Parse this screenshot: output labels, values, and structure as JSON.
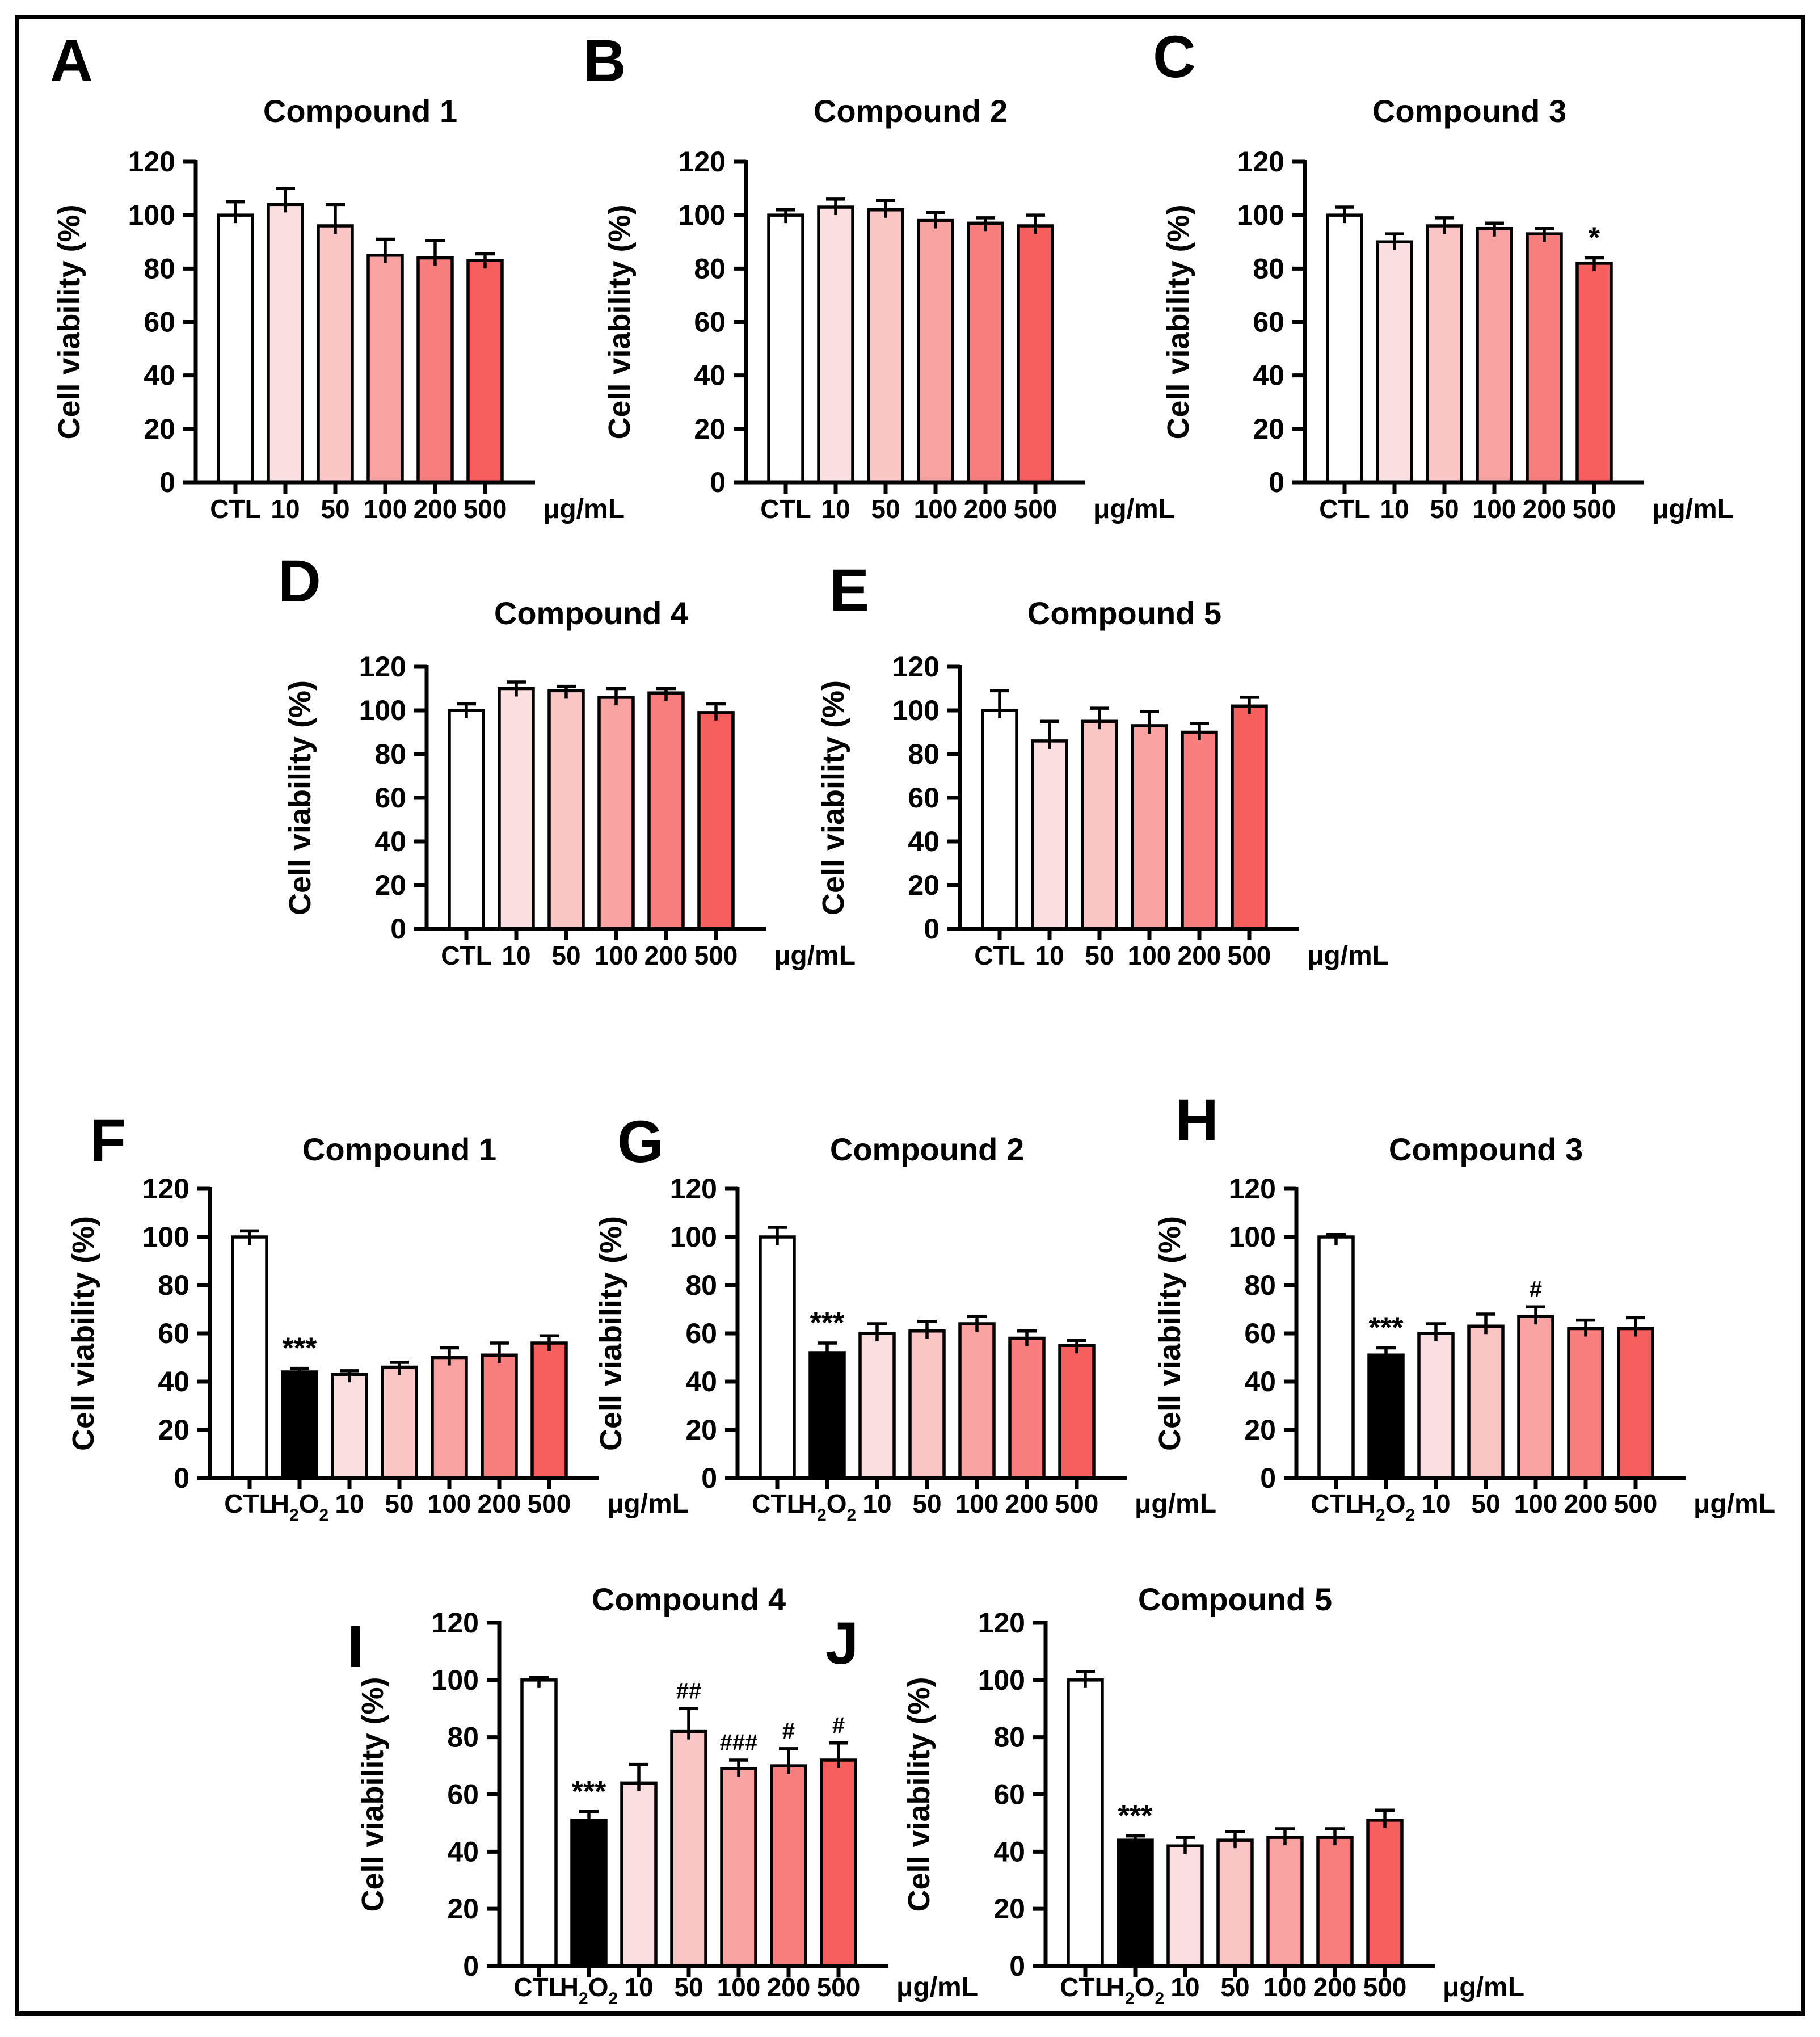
{
  "figure": {
    "y_axis_label": "Cell viability (%)",
    "x_unit": "μg/mL",
    "y_ticks": [
      0,
      20,
      40,
      60,
      80,
      100,
      120
    ],
    "ylim": [
      0,
      120
    ],
    "panel_letters": [
      "A",
      "B",
      "C",
      "D",
      "E",
      "F",
      "G",
      "H",
      "I",
      "J"
    ],
    "colors": {
      "background": "#FFFFFF",
      "frame": "#000000",
      "bar_stroke": "#000000",
      "error_bar": "#000000",
      "control_fill": "#FFFFFF",
      "h2o2_fill": "#000000",
      "dose_fills": [
        "#FBDEE0",
        "#F9C5C5",
        "#F8A2A2",
        "#F87F7E",
        "#F75E5E"
      ]
    }
  },
  "chart_data": [
    {
      "panel": "A",
      "type": "bar",
      "title": "Compound 1",
      "ylabel": "Cell viability (%)",
      "x_unit": "μg/mL",
      "ylim": [
        0,
        120
      ],
      "categories": [
        "CTL",
        "10",
        "50",
        "100",
        "200",
        "500"
      ],
      "values": [
        100,
        104,
        96,
        85,
        84,
        83
      ],
      "errors": [
        5,
        6,
        8,
        6,
        6.5,
        2.5
      ],
      "sig": [
        "",
        "",
        "",
        "",
        "",
        ""
      ]
    },
    {
      "panel": "B",
      "type": "bar",
      "title": "Compound 2",
      "ylabel": "Cell viability (%)",
      "x_unit": "μg/mL",
      "ylim": [
        0,
        120
      ],
      "categories": [
        "CTL",
        "10",
        "50",
        "100",
        "200",
        "500"
      ],
      "values": [
        100,
        103,
        102,
        98,
        97,
        96
      ],
      "errors": [
        2,
        3,
        3.5,
        3,
        2,
        4
      ],
      "sig": [
        "",
        "",
        "",
        "",
        "",
        ""
      ]
    },
    {
      "panel": "C",
      "type": "bar",
      "title": "Compound 3",
      "ylabel": "Cell viability (%)",
      "x_unit": "μg/mL",
      "ylim": [
        0,
        120
      ],
      "categories": [
        "CTL",
        "10",
        "50",
        "100",
        "200",
        "500"
      ],
      "values": [
        100,
        90,
        96,
        95,
        93,
        82
      ],
      "errors": [
        3,
        3,
        3,
        2,
        2,
        2
      ],
      "sig": [
        "",
        "",
        "",
        "",
        "",
        "*"
      ]
    },
    {
      "panel": "D",
      "type": "bar",
      "title": "Compound 4",
      "ylabel": "Cell viability (%)",
      "x_unit": "μg/mL",
      "ylim": [
        0,
        120
      ],
      "categories": [
        "CTL",
        "10",
        "50",
        "100",
        "200",
        "500"
      ],
      "values": [
        100,
        110,
        109,
        106,
        108,
        99
      ],
      "errors": [
        3,
        3,
        2,
        4,
        2,
        4
      ],
      "sig": [
        "",
        "",
        "",
        "",
        "",
        ""
      ]
    },
    {
      "panel": "E",
      "type": "bar",
      "title": "Compound 5",
      "ylabel": "Cell viability (%)",
      "x_unit": "μg/mL",
      "ylim": [
        0,
        120
      ],
      "categories": [
        "CTL",
        "10",
        "50",
        "100",
        "200",
        "500"
      ],
      "values": [
        100,
        86,
        95,
        93,
        90,
        102
      ],
      "errors": [
        9,
        9,
        6,
        6.5,
        4,
        4
      ],
      "sig": [
        "",
        "",
        "",
        "",
        "",
        ""
      ]
    },
    {
      "panel": "F",
      "type": "bar",
      "title": "Compound 1",
      "ylabel": "Cell viability (%)",
      "x_unit": "μg/mL",
      "ylim": [
        0,
        120
      ],
      "categories": [
        "CTL",
        "H₂O₂",
        "10",
        "50",
        "100",
        "200",
        "500"
      ],
      "values": [
        100,
        44,
        43,
        46,
        50,
        51,
        56
      ],
      "errors": [
        2.5,
        1.5,
        1.5,
        2,
        4,
        5,
        3
      ],
      "sig": [
        "",
        "***",
        "",
        "",
        "",
        "",
        ""
      ]
    },
    {
      "panel": "G",
      "type": "bar",
      "title": "Compound 2",
      "ylabel": "Cell viability (%)",
      "x_unit": "μg/mL",
      "ylim": [
        0,
        120
      ],
      "categories": [
        "CTL",
        "H₂O₂",
        "10",
        "50",
        "100",
        "200",
        "500"
      ],
      "values": [
        100,
        52,
        60,
        61,
        64,
        58,
        55
      ],
      "errors": [
        4,
        4,
        4,
        4,
        3,
        3,
        2
      ],
      "sig": [
        "",
        "***",
        "",
        "",
        "",
        "",
        ""
      ]
    },
    {
      "panel": "H",
      "type": "bar",
      "title": "Compound 3",
      "ylabel": "Cell viability (%)",
      "x_unit": "μg/mL",
      "ylim": [
        0,
        120
      ],
      "categories": [
        "CTL",
        "H₂O₂",
        "10",
        "50",
        "100",
        "200",
        "500"
      ],
      "values": [
        100,
        51,
        60,
        63,
        67,
        62,
        62
      ],
      "errors": [
        1,
        3,
        4,
        5,
        4,
        3.5,
        4.5
      ],
      "sig": [
        "",
        "***",
        "",
        "",
        "#",
        "",
        ""
      ]
    },
    {
      "panel": "I",
      "type": "bar",
      "title": "Compound 4",
      "ylabel": "Cell viability (%)",
      "x_unit": "μg/mL",
      "ylim": [
        0,
        120
      ],
      "categories": [
        "CTL",
        "H₂O₂",
        "10",
        "50",
        "100",
        "200",
        "500"
      ],
      "values": [
        100,
        51,
        64,
        82,
        69,
        70,
        72
      ],
      "errors": [
        0.8,
        3,
        6.5,
        8,
        3,
        6,
        6
      ],
      "sig": [
        "",
        "***",
        "",
        "##",
        "###",
        "#",
        "#"
      ]
    },
    {
      "panel": "J",
      "type": "bar",
      "title": "Compound 5",
      "ylabel": "Cell viability (%)",
      "x_unit": "μg/mL",
      "ylim": [
        0,
        120
      ],
      "categories": [
        "CTL",
        "H₂O₂",
        "10",
        "50",
        "100",
        "200",
        "500"
      ],
      "values": [
        100,
        44,
        42,
        44,
        45,
        45,
        51
      ],
      "errors": [
        3,
        1.5,
        3,
        3,
        3,
        3,
        3.5
      ],
      "sig": [
        "",
        "***",
        "",
        "",
        "",
        "",
        ""
      ]
    }
  ]
}
